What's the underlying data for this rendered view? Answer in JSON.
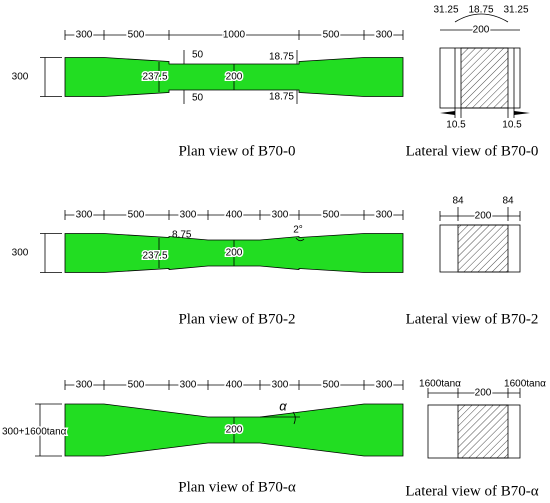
{
  "plan_views": [
    {
      "caption": "Plan view of B70-0",
      "top_dimensions": [
        "300",
        "500",
        "1000",
        "500",
        "300"
      ],
      "side_dimension": "300",
      "labels": [
        "237.5",
        "200",
        "50",
        "50",
        "18.75",
        "18.75"
      ]
    },
    {
      "caption": "Plan view of B70-2",
      "top_dimensions": [
        "300",
        "500",
        "300",
        "400",
        "300",
        "500",
        "300"
      ],
      "side_dimension": "300",
      "labels": [
        "237.5",
        "200",
        "8.75",
        "2°"
      ]
    },
    {
      "caption": "Plan view of B70-α",
      "top_dimensions": [
        "300",
        "500",
        "300",
        "400",
        "300",
        "500",
        "300"
      ],
      "side_dimension": "300+1600tanα",
      "labels": [
        "200",
        "α"
      ]
    }
  ],
  "lateral_views": [
    {
      "caption": "Lateral view of B70-0",
      "top_dimensions": [
        "31.25",
        "18.75",
        "31.25"
      ],
      "width_dimension": "200",
      "bottom_dimensions": [
        "10.5",
        "10.5"
      ]
    },
    {
      "caption": "Lateral view of B70-2",
      "top_dimensions": [
        "84",
        "84"
      ],
      "width_dimension": "200"
    },
    {
      "caption": "Lateral view of B70-α",
      "top_dimensions": [
        "1600tanα",
        "1600tanα"
      ],
      "width_dimension": "200"
    }
  ]
}
